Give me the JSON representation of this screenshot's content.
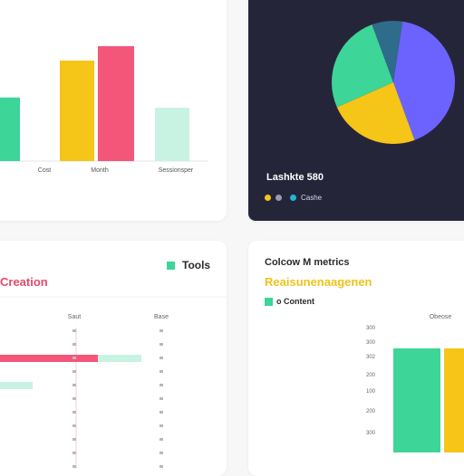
{
  "colors": {
    "green": "#3dd598",
    "yellow": "#f5c518",
    "pink": "#f4567a",
    "mint": "#c8f2e2",
    "purple": "#6c63ff",
    "teal": "#3dd598",
    "dark": "#25253a"
  },
  "top_left": {
    "tick_labels": [
      "Cost",
      "Month",
      "Sessionsper"
    ]
  },
  "top_right": {
    "title": "Lashkte 580",
    "legend_label": "Cashe"
  },
  "bottom_left": {
    "legend_label": "Tools",
    "title": "Creation",
    "col_headers": [
      "Saut",
      "Base"
    ]
  },
  "bottom_right": {
    "title": "Colcow M metrics",
    "subtitle": "Reaisunenaagenen",
    "legend_label": "o Content",
    "col_header": "Obeose",
    "axis_labels": [
      "300",
      "300",
      "302",
      "200",
      "100",
      "200",
      "300"
    ]
  },
  "chart_data": [
    {
      "type": "bar",
      "categories": [
        "Cost",
        "Month",
        "Sessionsper"
      ],
      "series": [
        {
          "values": [
            62,
            98,
            112
          ]
        },
        {
          "values": [
            null,
            null,
            52
          ]
        }
      ],
      "ylim": [
        0,
        120
      ]
    },
    {
      "type": "pie",
      "values": [
        42,
        24,
        26,
        8
      ],
      "colors": [
        "#6c63ff",
        "#f5c518",
        "#3dd598",
        "#2f6b8a"
      ]
    },
    {
      "type": "bar",
      "orientation": "horizontal",
      "series": [
        {
          "values": [
            100,
            40,
            10,
            8,
            6
          ]
        },
        {
          "values": [
            40,
            null,
            null,
            null,
            null
          ]
        }
      ]
    },
    {
      "type": "bar",
      "series": [
        {
          "values": [
            115
          ]
        },
        {
          "values": [
            115
          ]
        }
      ]
    }
  ]
}
